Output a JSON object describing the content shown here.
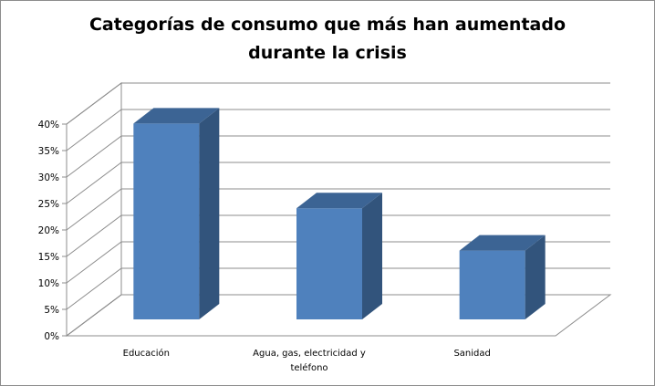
{
  "chart_data": {
    "type": "bar",
    "title_lines": [
      "Categorías de consumo que más han aumentado",
      "durante la crisis"
    ],
    "categories": [
      [
        "Educación"
      ],
      [
        "Agua, gas, electricidad y",
        "teléfono"
      ],
      [
        "Sanidad"
      ]
    ],
    "values": [
      0.37,
      0.21,
      0.13
    ],
    "ylim": [
      0,
      0.4
    ],
    "y_ticks": [
      {
        "value": 0.0,
        "label": "0%"
      },
      {
        "value": 0.05,
        "label": "5%"
      },
      {
        "value": 0.1,
        "label": "10%"
      },
      {
        "value": 0.15,
        "label": "15%"
      },
      {
        "value": 0.2,
        "label": "20%"
      },
      {
        "value": 0.25,
        "label": "25%"
      },
      {
        "value": 0.3,
        "label": "30%"
      },
      {
        "value": 0.35,
        "label": "35%"
      },
      {
        "value": 0.4,
        "label": "40%"
      }
    ],
    "xlabel": "",
    "ylabel": "",
    "grid": true,
    "legend": "none",
    "three_d": true
  },
  "colors": {
    "bar_front": "#4f81bd",
    "bar_top": "#3c6494",
    "bar_side": "#32547c",
    "grid": "#8c8c8c",
    "frame": "#8c8c8c"
  }
}
